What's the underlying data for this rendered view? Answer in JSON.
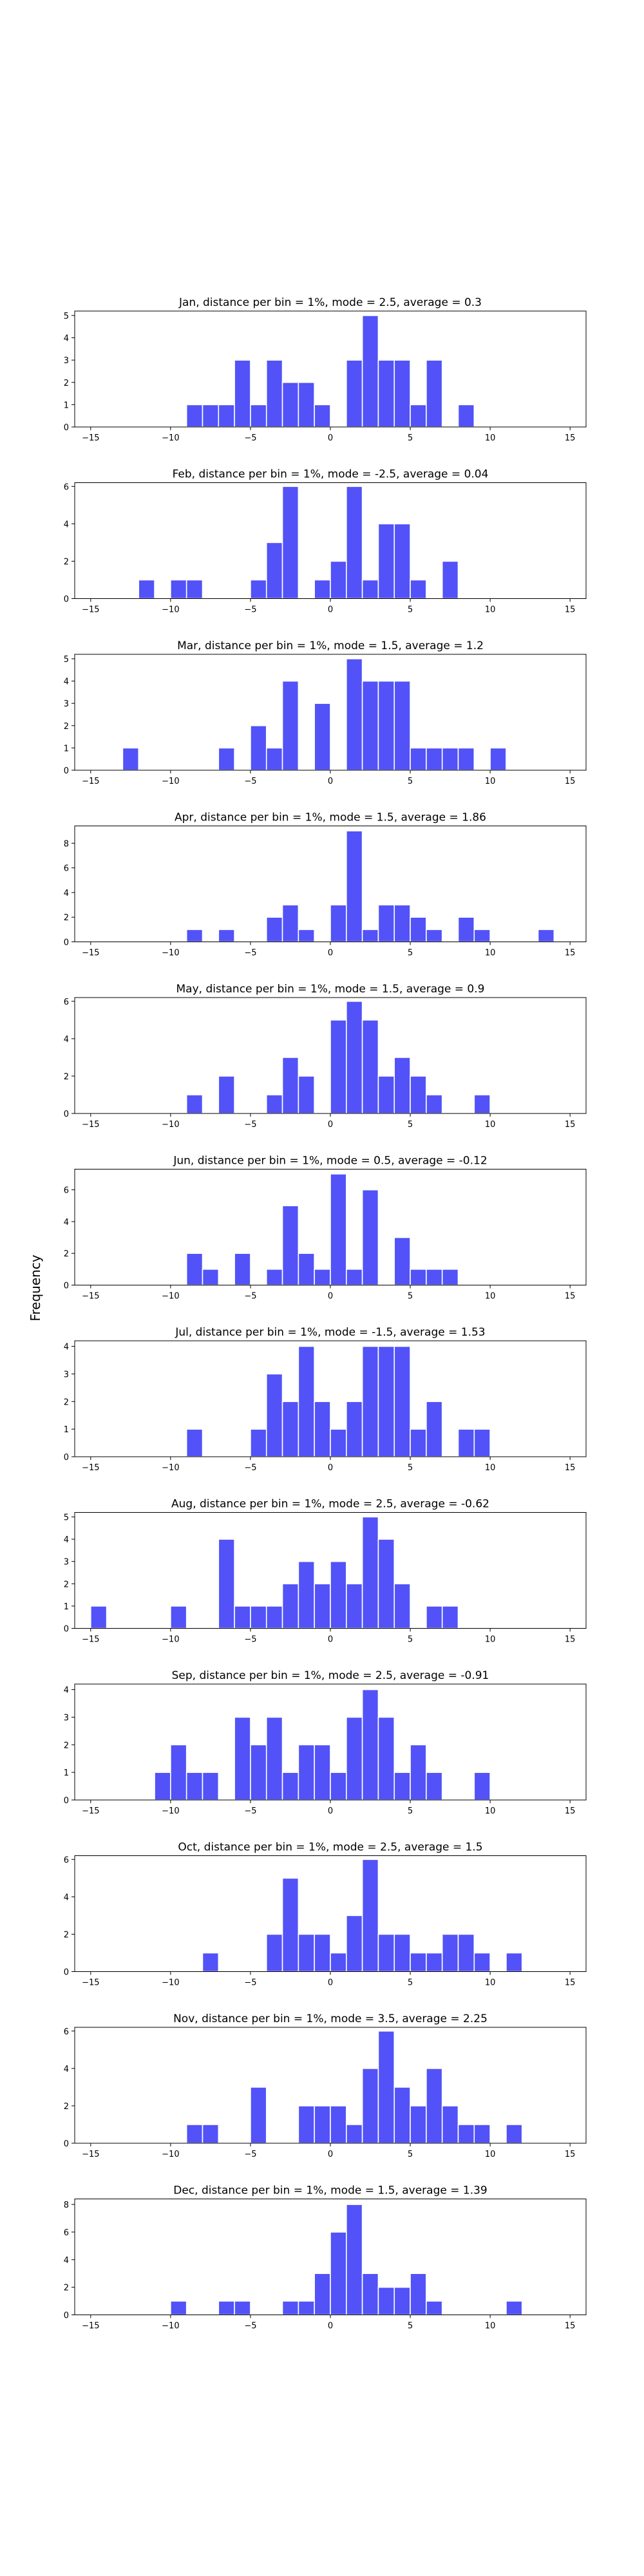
{
  "figure": {
    "ylabel": "Frequency"
  },
  "chart_data": [
    {
      "type": "bar",
      "title": "Jan, distance per bin = 1%, mode = 2.5, average = 0.3",
      "xlim": [
        -16,
        16
      ],
      "ylim": [
        0,
        5.2
      ],
      "xticks": [
        -15,
        -10,
        -5,
        0,
        5,
        10,
        15
      ],
      "yticks": [
        0,
        1,
        2,
        3,
        4,
        5
      ],
      "bar_color": "#4b4bf8",
      "bins": [
        {
          "x": -8.5,
          "y": 1
        },
        {
          "x": -7.5,
          "y": 1
        },
        {
          "x": -6.5,
          "y": 1
        },
        {
          "x": -5.5,
          "y": 3
        },
        {
          "x": -4.5,
          "y": 1
        },
        {
          "x": -3.5,
          "y": 3
        },
        {
          "x": -2.5,
          "y": 2
        },
        {
          "x": -1.5,
          "y": 2
        },
        {
          "x": -0.5,
          "y": 1
        },
        {
          "x": 1.5,
          "y": 3
        },
        {
          "x": 2.5,
          "y": 5
        },
        {
          "x": 3.5,
          "y": 3
        },
        {
          "x": 4.5,
          "y": 3
        },
        {
          "x": 5.5,
          "y": 1
        },
        {
          "x": 6.5,
          "y": 3
        },
        {
          "x": 8.5,
          "y": 1
        }
      ]
    },
    {
      "type": "bar",
      "title": "Feb, distance per bin = 1%, mode = -2.5, average = 0.04",
      "xlim": [
        -16,
        16
      ],
      "ylim": [
        0,
        6.2
      ],
      "xticks": [
        -15,
        -10,
        -5,
        0,
        5,
        10,
        15
      ],
      "yticks": [
        0,
        2,
        4,
        6
      ],
      "bar_color": "#4b4bf8",
      "bins": [
        {
          "x": -11.5,
          "y": 1
        },
        {
          "x": -9.5,
          "y": 1
        },
        {
          "x": -8.5,
          "y": 1
        },
        {
          "x": -4.5,
          "y": 1
        },
        {
          "x": -3.5,
          "y": 3
        },
        {
          "x": -2.5,
          "y": 6
        },
        {
          "x": -0.5,
          "y": 1
        },
        {
          "x": 0.5,
          "y": 2
        },
        {
          "x": 1.5,
          "y": 6
        },
        {
          "x": 2.5,
          "y": 1
        },
        {
          "x": 3.5,
          "y": 4
        },
        {
          "x": 4.5,
          "y": 4
        },
        {
          "x": 5.5,
          "y": 1
        },
        {
          "x": 7.5,
          "y": 2
        }
      ]
    },
    {
      "type": "bar",
      "title": "Mar, distance per bin = 1%, mode = 1.5, average = 1.2",
      "xlim": [
        -16,
        16
      ],
      "ylim": [
        0,
        5.2
      ],
      "xticks": [
        -15,
        -10,
        -5,
        0,
        5,
        10,
        15
      ],
      "yticks": [
        0,
        1,
        2,
        3,
        4,
        5
      ],
      "bar_color": "#4b4bf8",
      "bins": [
        {
          "x": -12.5,
          "y": 1
        },
        {
          "x": -6.5,
          "y": 1
        },
        {
          "x": -4.5,
          "y": 2
        },
        {
          "x": -3.5,
          "y": 1
        },
        {
          "x": -2.5,
          "y": 4
        },
        {
          "x": -0.5,
          "y": 3
        },
        {
          "x": 1.5,
          "y": 5
        },
        {
          "x": 2.5,
          "y": 4
        },
        {
          "x": 3.5,
          "y": 4
        },
        {
          "x": 4.5,
          "y": 4
        },
        {
          "x": 5.5,
          "y": 1
        },
        {
          "x": 6.5,
          "y": 1
        },
        {
          "x": 7.5,
          "y": 1
        },
        {
          "x": 8.5,
          "y": 1
        },
        {
          "x": 10.5,
          "y": 1
        }
      ]
    },
    {
      "type": "bar",
      "title": "Apr, distance per bin = 1%, mode = 1.5, average = 1.86",
      "xlim": [
        -16,
        16
      ],
      "ylim": [
        0,
        9.4
      ],
      "xticks": [
        -15,
        -10,
        -5,
        0,
        5,
        10,
        15
      ],
      "yticks": [
        0,
        2,
        4,
        6,
        8
      ],
      "bar_color": "#4b4bf8",
      "bins": [
        {
          "x": -8.5,
          "y": 1
        },
        {
          "x": -6.5,
          "y": 1
        },
        {
          "x": -3.5,
          "y": 2
        },
        {
          "x": -2.5,
          "y": 3
        },
        {
          "x": -1.5,
          "y": 1
        },
        {
          "x": 0.5,
          "y": 3
        },
        {
          "x": 1.5,
          "y": 9
        },
        {
          "x": 2.5,
          "y": 1
        },
        {
          "x": 3.5,
          "y": 3
        },
        {
          "x": 4.5,
          "y": 3
        },
        {
          "x": 5.5,
          "y": 2
        },
        {
          "x": 6.5,
          "y": 1
        },
        {
          "x": 8.5,
          "y": 2
        },
        {
          "x": 9.5,
          "y": 1
        },
        {
          "x": 13.5,
          "y": 1
        }
      ]
    },
    {
      "type": "bar",
      "title": "May, distance per bin = 1%, mode = 1.5, average = 0.9",
      "xlim": [
        -16,
        16
      ],
      "ylim": [
        0,
        6.2
      ],
      "xticks": [
        -15,
        -10,
        -5,
        0,
        5,
        10,
        15
      ],
      "yticks": [
        0,
        2,
        4,
        6
      ],
      "bar_color": "#4b4bf8",
      "bins": [
        {
          "x": -8.5,
          "y": 1
        },
        {
          "x": -6.5,
          "y": 2
        },
        {
          "x": -3.5,
          "y": 1
        },
        {
          "x": -2.5,
          "y": 3
        },
        {
          "x": -1.5,
          "y": 2
        },
        {
          "x": 0.5,
          "y": 5
        },
        {
          "x": 1.5,
          "y": 6
        },
        {
          "x": 2.5,
          "y": 5
        },
        {
          "x": 3.5,
          "y": 2
        },
        {
          "x": 4.5,
          "y": 3
        },
        {
          "x": 5.5,
          "y": 2
        },
        {
          "x": 6.5,
          "y": 1
        },
        {
          "x": 9.5,
          "y": 1
        }
      ]
    },
    {
      "type": "bar",
      "title": "Jun, distance per bin = 1%, mode = 0.5, average = -0.12",
      "xlim": [
        -16,
        16
      ],
      "ylim": [
        0,
        7.3
      ],
      "xticks": [
        -15,
        -10,
        -5,
        0,
        5,
        10,
        15
      ],
      "yticks": [
        0,
        2,
        4,
        6
      ],
      "bar_color": "#4b4bf8",
      "bins": [
        {
          "x": -8.5,
          "y": 2
        },
        {
          "x": -7.5,
          "y": 1
        },
        {
          "x": -5.5,
          "y": 2
        },
        {
          "x": -3.5,
          "y": 1
        },
        {
          "x": -2.5,
          "y": 5
        },
        {
          "x": -1.5,
          "y": 2
        },
        {
          "x": -0.5,
          "y": 1
        },
        {
          "x": 0.5,
          "y": 7
        },
        {
          "x": 1.5,
          "y": 1
        },
        {
          "x": 2.5,
          "y": 6
        },
        {
          "x": 4.5,
          "y": 3
        },
        {
          "x": 5.5,
          "y": 1
        },
        {
          "x": 6.5,
          "y": 1
        },
        {
          "x": 7.5,
          "y": 1
        }
      ]
    },
    {
      "type": "bar",
      "title": "Jul, distance per bin = 1%, mode = -1.5, average = 1.53",
      "xlim": [
        -16,
        16
      ],
      "ylim": [
        0,
        4.2
      ],
      "xticks": [
        -15,
        -10,
        -5,
        0,
        5,
        10,
        15
      ],
      "yticks": [
        0,
        1,
        2,
        3,
        4
      ],
      "bar_color": "#4b4bf8",
      "bins": [
        {
          "x": -8.5,
          "y": 1
        },
        {
          "x": -4.5,
          "y": 1
        },
        {
          "x": -3.5,
          "y": 3
        },
        {
          "x": -2.5,
          "y": 2
        },
        {
          "x": -1.5,
          "y": 4
        },
        {
          "x": -0.5,
          "y": 2
        },
        {
          "x": 0.5,
          "y": 1
        },
        {
          "x": 1.5,
          "y": 2
        },
        {
          "x": 2.5,
          "y": 4
        },
        {
          "x": 3.5,
          "y": 4
        },
        {
          "x": 4.5,
          "y": 4
        },
        {
          "x": 5.5,
          "y": 1
        },
        {
          "x": 6.5,
          "y": 2
        },
        {
          "x": 8.5,
          "y": 1
        },
        {
          "x": 9.5,
          "y": 1
        }
      ]
    },
    {
      "type": "bar",
      "title": "Aug, distance per bin = 1%, mode = 2.5, average = -0.62",
      "xlim": [
        -16,
        16
      ],
      "ylim": [
        0,
        5.2
      ],
      "xticks": [
        -15,
        -10,
        -5,
        0,
        5,
        10,
        15
      ],
      "yticks": [
        0,
        1,
        2,
        3,
        4,
        5
      ],
      "bar_color": "#4b4bf8",
      "bins": [
        {
          "x": -14.5,
          "y": 1
        },
        {
          "x": -9.5,
          "y": 1
        },
        {
          "x": -6.5,
          "y": 4
        },
        {
          "x": -5.5,
          "y": 1
        },
        {
          "x": -4.5,
          "y": 1
        },
        {
          "x": -3.5,
          "y": 1
        },
        {
          "x": -2.5,
          "y": 2
        },
        {
          "x": -1.5,
          "y": 3
        },
        {
          "x": -0.5,
          "y": 2
        },
        {
          "x": 0.5,
          "y": 3
        },
        {
          "x": 1.5,
          "y": 2
        },
        {
          "x": 2.5,
          "y": 5
        },
        {
          "x": 3.5,
          "y": 4
        },
        {
          "x": 4.5,
          "y": 2
        },
        {
          "x": 6.5,
          "y": 1
        },
        {
          "x": 7.5,
          "y": 1
        }
      ]
    },
    {
      "type": "bar",
      "title": "Sep, distance per bin = 1%, mode = 2.5, average = -0.91",
      "xlim": [
        -16,
        16
      ],
      "ylim": [
        0,
        4.2
      ],
      "xticks": [
        -15,
        -10,
        -5,
        0,
        5,
        10,
        15
      ],
      "yticks": [
        0,
        1,
        2,
        3,
        4
      ],
      "bar_color": "#4b4bf8",
      "bins": [
        {
          "x": -10.5,
          "y": 1
        },
        {
          "x": -9.5,
          "y": 2
        },
        {
          "x": -8.5,
          "y": 1
        },
        {
          "x": -7.5,
          "y": 1
        },
        {
          "x": -5.5,
          "y": 3
        },
        {
          "x": -4.5,
          "y": 2
        },
        {
          "x": -3.5,
          "y": 3
        },
        {
          "x": -2.5,
          "y": 1
        },
        {
          "x": -1.5,
          "y": 2
        },
        {
          "x": -0.5,
          "y": 2
        },
        {
          "x": 0.5,
          "y": 1
        },
        {
          "x": 1.5,
          "y": 3
        },
        {
          "x": 2.5,
          "y": 4
        },
        {
          "x": 3.5,
          "y": 3
        },
        {
          "x": 4.5,
          "y": 1
        },
        {
          "x": 5.5,
          "y": 2
        },
        {
          "x": 6.5,
          "y": 1
        },
        {
          "x": 9.5,
          "y": 1
        }
      ]
    },
    {
      "type": "bar",
      "title": "Oct, distance per bin = 1%, mode = 2.5, average = 1.5",
      "xlim": [
        -16,
        16
      ],
      "ylim": [
        0,
        6.2
      ],
      "xticks": [
        -15,
        -10,
        -5,
        0,
        5,
        10,
        15
      ],
      "yticks": [
        0,
        2,
        4,
        6
      ],
      "bar_color": "#4b4bf8",
      "bins": [
        {
          "x": -7.5,
          "y": 1
        },
        {
          "x": -3.5,
          "y": 2
        },
        {
          "x": -2.5,
          "y": 5
        },
        {
          "x": -1.5,
          "y": 2
        },
        {
          "x": -0.5,
          "y": 2
        },
        {
          "x": 0.5,
          "y": 1
        },
        {
          "x": 1.5,
          "y": 3
        },
        {
          "x": 2.5,
          "y": 6
        },
        {
          "x": 3.5,
          "y": 2
        },
        {
          "x": 4.5,
          "y": 2
        },
        {
          "x": 5.5,
          "y": 1
        },
        {
          "x": 6.5,
          "y": 1
        },
        {
          "x": 7.5,
          "y": 2
        },
        {
          "x": 8.5,
          "y": 2
        },
        {
          "x": 9.5,
          "y": 1
        },
        {
          "x": 11.5,
          "y": 1
        }
      ]
    },
    {
      "type": "bar",
      "title": "Nov, distance per bin = 1%, mode = 3.5, average = 2.25",
      "xlim": [
        -16,
        16
      ],
      "ylim": [
        0,
        6.2
      ],
      "xticks": [
        -15,
        -10,
        -5,
        0,
        5,
        10,
        15
      ],
      "yticks": [
        0,
        2,
        4,
        6
      ],
      "bar_color": "#4b4bf8",
      "bins": [
        {
          "x": -8.5,
          "y": 1
        },
        {
          "x": -7.5,
          "y": 1
        },
        {
          "x": -4.5,
          "y": 3
        },
        {
          "x": -1.5,
          "y": 2
        },
        {
          "x": -0.5,
          "y": 2
        },
        {
          "x": 0.5,
          "y": 2
        },
        {
          "x": 1.5,
          "y": 1
        },
        {
          "x": 2.5,
          "y": 4
        },
        {
          "x": 3.5,
          "y": 6
        },
        {
          "x": 4.5,
          "y": 3
        },
        {
          "x": 5.5,
          "y": 2
        },
        {
          "x": 6.5,
          "y": 4
        },
        {
          "x": 7.5,
          "y": 2
        },
        {
          "x": 8.5,
          "y": 1
        },
        {
          "x": 9.5,
          "y": 1
        },
        {
          "x": 11.5,
          "y": 1
        }
      ]
    },
    {
      "type": "bar",
      "title": "Dec, distance per bin = 1%, mode = 1.5, average = 1.39",
      "xlim": [
        -16,
        16
      ],
      "ylim": [
        0,
        8.4
      ],
      "xticks": [
        -15,
        -10,
        -5,
        0,
        5,
        10,
        15
      ],
      "yticks": [
        0,
        2,
        4,
        6,
        8
      ],
      "bar_color": "#4b4bf8",
      "bins": [
        {
          "x": -9.5,
          "y": 1
        },
        {
          "x": -6.5,
          "y": 1
        },
        {
          "x": -5.5,
          "y": 1
        },
        {
          "x": -2.5,
          "y": 1
        },
        {
          "x": -1.5,
          "y": 1
        },
        {
          "x": -0.5,
          "y": 3
        },
        {
          "x": 0.5,
          "y": 6
        },
        {
          "x": 1.5,
          "y": 8
        },
        {
          "x": 2.5,
          "y": 3
        },
        {
          "x": 3.5,
          "y": 2
        },
        {
          "x": 4.5,
          "y": 2
        },
        {
          "x": 5.5,
          "y": 3
        },
        {
          "x": 6.5,
          "y": 1
        },
        {
          "x": 11.5,
          "y": 1
        }
      ]
    }
  ]
}
